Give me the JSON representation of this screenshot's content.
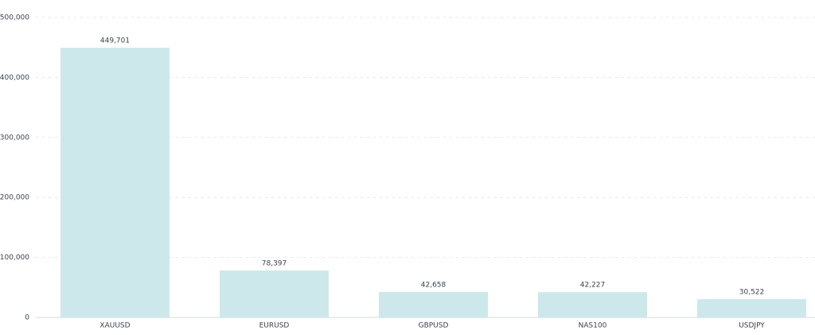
{
  "chart_data": {
    "type": "bar",
    "categories": [
      "XAUUSD",
      "EURUSD",
      "GBPUSD",
      "NAS100",
      "USDJPY"
    ],
    "values": [
      449701,
      78397,
      42658,
      42227,
      30522
    ],
    "value_labels": [
      "449,701",
      "78,397",
      "42,658",
      "42,227",
      "30,522"
    ],
    "color": "#cde8ea",
    "ylim": [
      0,
      500000
    ],
    "yticks": [
      0,
      {
        "value": 100000,
        "label": "100,000"
      },
      {
        "value": 200000,
        "label": "200,000"
      },
      {
        "value": 300000,
        "label": "300,000"
      },
      {
        "value": 400000,
        "label": "400,000"
      },
      {
        "value": 500000,
        "label": "500,000"
      }
    ],
    "grid": true
  }
}
